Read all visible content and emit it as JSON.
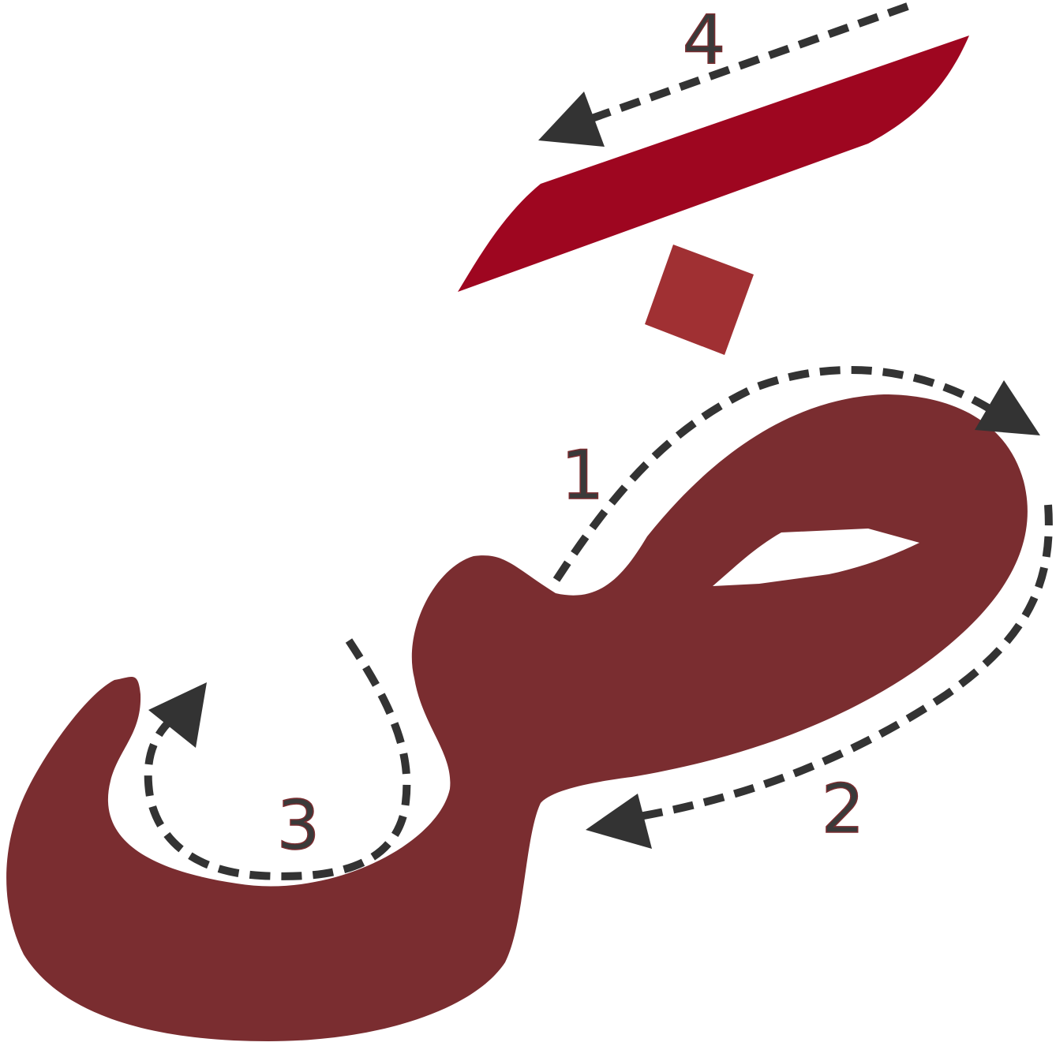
{
  "diagram": {
    "labels": {
      "step1": "1",
      "step2": "2",
      "step3": "3",
      "step4": "4"
    }
  },
  "colors": {
    "letter_body": "#7a2d30",
    "top_stroke": "#9e0620",
    "dot": "#a03033",
    "guide": "#333333",
    "background": "#ffffff"
  },
  "icons": {
    "arrowhead": "triangle-arrowhead-icon"
  }
}
